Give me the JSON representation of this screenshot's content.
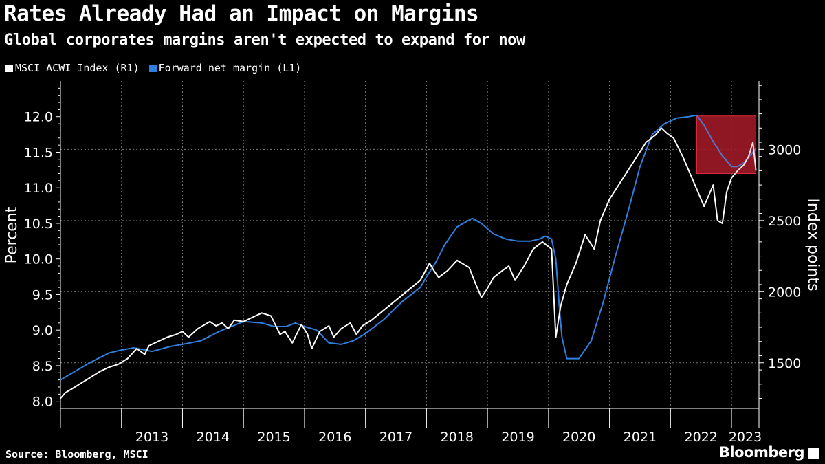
{
  "header": {
    "title": "Rates Already Had an Impact on Margins",
    "subtitle": "Global corporates margins aren't expected to expand for now"
  },
  "footer": {
    "source": "Source: Bloomberg, MSCI",
    "brand": "Bloomberg"
  },
  "colors": {
    "background": "#000000",
    "acwi": "#ffffff",
    "margin": "#2f7fe0",
    "highlight": "#8b0f1a"
  },
  "chart_data": {
    "type": "line",
    "title": "Rates Already Had an Impact on Margins",
    "subtitle": "Global corporates margins aren't expected to expand for now",
    "ylabel_left": "Percent",
    "ylabel_right": "Index points",
    "ylim_left": [
      7.9,
      12.5
    ],
    "ylim_right": [
      1180,
      3480
    ],
    "left_ticks": [
      "8.0",
      "8.5",
      "9.0",
      "9.5",
      "10.0",
      "10.5",
      "11.0",
      "11.5",
      "12.0"
    ],
    "right_ticks": [
      "1500",
      "2000",
      "2500",
      "3000"
    ],
    "x_labels": [
      "2013",
      "2014",
      "2015",
      "2016",
      "2017",
      "2018",
      "2019",
      "2020",
      "2021",
      "2022",
      "2023"
    ],
    "grid": "horizontal dotted at right-axis ticks, vertical dotted at year boundaries",
    "legend_position": "top-left",
    "highlight_region": {
      "x_start": 2022.43,
      "x_end": 2023.4,
      "y_right_start": 2830,
      "y_right_end": 3235
    },
    "series": [
      {
        "name": "MSCI ACWI Index (R1)",
        "axis": "right",
        "x": [
          2012.0,
          2012.08,
          2012.2,
          2012.35,
          2012.5,
          2012.65,
          2012.8,
          2012.95,
          2013.1,
          2013.25,
          2013.38,
          2013.45,
          2013.6,
          2013.75,
          2013.9,
          2014.0,
          2014.1,
          2014.25,
          2014.45,
          2014.55,
          2014.65,
          2014.75,
          2014.85,
          2015.0,
          2015.15,
          2015.3,
          2015.45,
          2015.6,
          2015.68,
          2015.8,
          2015.95,
          2016.05,
          2016.12,
          2016.25,
          2016.4,
          2016.48,
          2016.6,
          2016.75,
          2016.85,
          2016.95,
          2017.1,
          2017.3,
          2017.5,
          2017.7,
          2017.9,
          2018.05,
          2018.12,
          2018.2,
          2018.35,
          2018.5,
          2018.7,
          2018.8,
          2018.9,
          2018.98,
          2019.1,
          2019.25,
          2019.35,
          2019.45,
          2019.6,
          2019.75,
          2019.9,
          2020.05,
          2020.12,
          2020.2,
          2020.3,
          2020.45,
          2020.6,
          2020.75,
          2020.85,
          2021.0,
          2021.15,
          2021.3,
          2021.45,
          2021.6,
          2021.75,
          2021.85,
          2021.95,
          2022.05,
          2022.2,
          2022.3,
          2022.45,
          2022.55,
          2022.7,
          2022.77,
          2022.85,
          2022.92,
          2023.0,
          2023.1,
          2023.2,
          2023.28,
          2023.35,
          2023.4
        ],
        "y": [
          1250,
          1290,
          1320,
          1360,
          1400,
          1440,
          1470,
          1490,
          1530,
          1600,
          1560,
          1620,
          1650,
          1680,
          1700,
          1720,
          1680,
          1740,
          1790,
          1760,
          1780,
          1740,
          1800,
          1790,
          1820,
          1850,
          1830,
          1700,
          1720,
          1640,
          1770,
          1700,
          1600,
          1720,
          1760,
          1680,
          1740,
          1780,
          1700,
          1760,
          1800,
          1870,
          1940,
          2010,
          2080,
          2200,
          2150,
          2100,
          2150,
          2220,
          2170,
          2060,
          1960,
          2010,
          2100,
          2150,
          2180,
          2080,
          2180,
          2300,
          2350,
          2300,
          1680,
          1900,
          2050,
          2200,
          2400,
          2300,
          2500,
          2650,
          2750,
          2850,
          2950,
          3050,
          3100,
          3150,
          3110,
          3080,
          2950,
          2850,
          2700,
          2600,
          2750,
          2500,
          2480,
          2700,
          2800,
          2850,
          2890,
          2950,
          3050,
          2850
        ]
      },
      {
        "name": "Forward net margin (L1)",
        "axis": "left",
        "x": [
          2012.0,
          2012.2,
          2012.5,
          2012.8,
          2013.0,
          2013.2,
          2013.5,
          2013.8,
          2014.0,
          2014.3,
          2014.6,
          2014.8,
          2015.0,
          2015.3,
          2015.5,
          2015.7,
          2015.85,
          2016.0,
          2016.2,
          2016.4,
          2016.6,
          2016.8,
          2017.0,
          2017.3,
          2017.6,
          2017.9,
          2018.0,
          2018.15,
          2018.3,
          2018.5,
          2018.6,
          2018.75,
          2018.9,
          2019.1,
          2019.3,
          2019.5,
          2019.7,
          2019.85,
          2019.95,
          2020.05,
          2020.12,
          2020.18,
          2020.22,
          2020.3,
          2020.5,
          2020.7,
          2020.9,
          2021.1,
          2021.3,
          2021.5,
          2021.7,
          2021.9,
          2022.1,
          2022.3,
          2022.43,
          2022.55,
          2022.7,
          2022.85,
          2023.0,
          2023.1,
          2023.2,
          2023.3,
          2023.4
        ],
        "y": [
          8.3,
          8.4,
          8.55,
          8.68,
          8.72,
          8.75,
          8.7,
          8.77,
          8.8,
          8.85,
          8.98,
          9.05,
          9.12,
          9.1,
          9.05,
          9.05,
          9.1,
          9.05,
          9.0,
          8.82,
          8.8,
          8.85,
          8.95,
          9.15,
          9.4,
          9.6,
          9.75,
          9.95,
          10.2,
          10.45,
          10.5,
          10.57,
          10.5,
          10.35,
          10.28,
          10.25,
          10.25,
          10.28,
          10.32,
          10.28,
          10.0,
          9.3,
          8.9,
          8.6,
          8.6,
          8.85,
          9.4,
          10.05,
          10.65,
          11.3,
          11.75,
          11.9,
          11.98,
          12.0,
          12.02,
          11.88,
          11.65,
          11.45,
          11.3,
          11.3,
          11.35,
          11.45,
          11.55
        ]
      }
    ]
  }
}
